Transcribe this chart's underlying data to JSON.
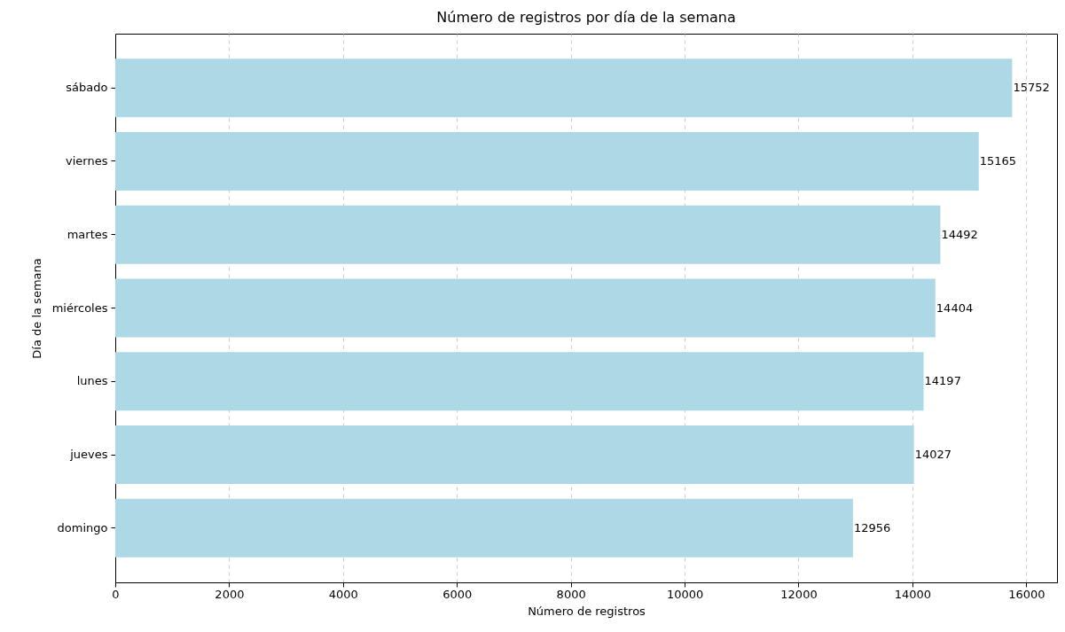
{
  "chart_data": {
    "type": "bar",
    "orientation": "horizontal",
    "title": "Número de registros por día de la semana",
    "xlabel": "Número de registros",
    "ylabel": "Día de la semana",
    "categories": [
      "sábado",
      "viernes",
      "martes",
      "miércoles",
      "lunes",
      "jueves",
      "domingo"
    ],
    "values": [
      15752,
      15165,
      14492,
      14404,
      14197,
      14027,
      12956
    ],
    "color": "#add8e6",
    "xlim": [
      0,
      16540
    ],
    "xticks": [
      0,
      2000,
      4000,
      6000,
      8000,
      10000,
      12000,
      14000,
      16000
    ],
    "grid": "x",
    "data_labels": true
  }
}
